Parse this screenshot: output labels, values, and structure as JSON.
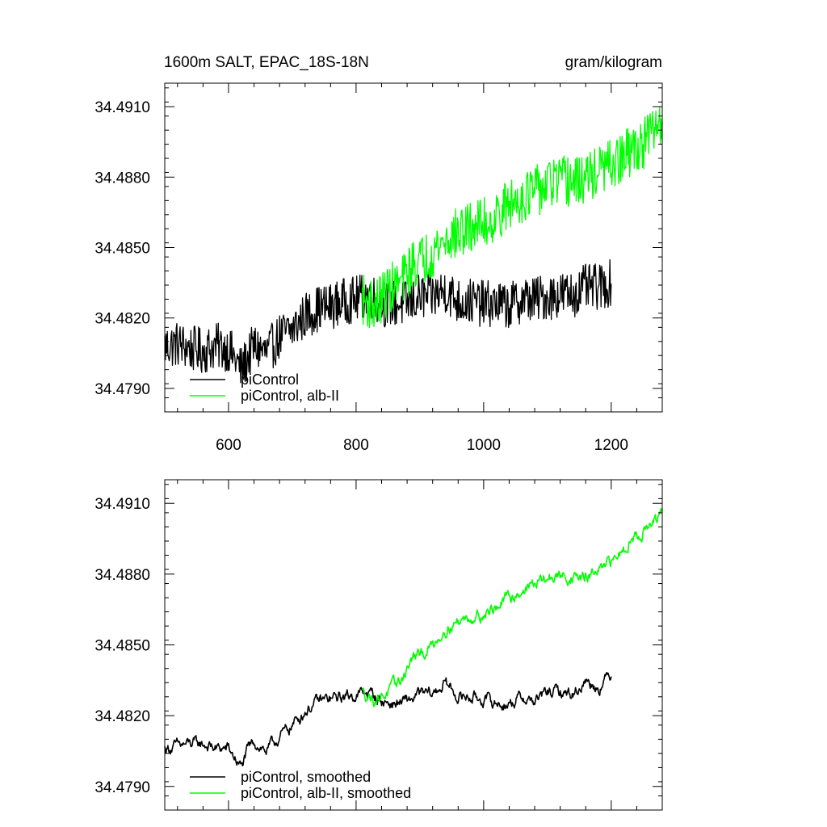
{
  "chart_data": [
    {
      "type": "line",
      "title": "1600m SALT, EPAC_18S-18N",
      "units": "gram/kilogram",
      "xlim": [
        500,
        1280
      ],
      "ylim": [
        34.478,
        34.492
      ],
      "xticks": [
        "600",
        "800",
        "1000",
        "1200"
      ],
      "yticks": [
        "34.4910",
        "34.4880",
        "34.4850",
        "34.4820",
        "34.4790"
      ],
      "legend_position": "bottom-left",
      "series": [
        {
          "name": "piControl",
          "color": "#000000",
          "x_range": [
            500,
            1200
          ],
          "points": [
            [
              500,
              34.4808
            ],
            [
              520,
              34.4809
            ],
            [
              540,
              34.4807
            ],
            [
              560,
              34.4806
            ],
            [
              580,
              34.4808
            ],
            [
              600,
              34.4807
            ],
            [
              620,
              34.4798
            ],
            [
              640,
              34.4808
            ],
            [
              660,
              34.4805
            ],
            [
              680,
              34.4812
            ],
            [
              700,
              34.4815
            ],
            [
              720,
              34.4821
            ],
            [
              740,
              34.4824
            ],
            [
              760,
              34.4825
            ],
            [
              780,
              34.4827
            ],
            [
              800,
              34.4828
            ],
            [
              820,
              34.483
            ],
            [
              840,
              34.4826
            ],
            [
              860,
              34.4826
            ],
            [
              880,
              34.4826
            ],
            [
              900,
              34.4829
            ],
            [
              920,
              34.4829
            ],
            [
              940,
              34.4832
            ],
            [
              960,
              34.4827
            ],
            [
              980,
              34.4827
            ],
            [
              1000,
              34.4826
            ],
            [
              1020,
              34.4826
            ],
            [
              1040,
              34.4825
            ],
            [
              1060,
              34.4828
            ],
            [
              1080,
              34.4828
            ],
            [
              1100,
              34.4829
            ],
            [
              1120,
              34.483
            ],
            [
              1140,
              34.483
            ],
            [
              1160,
              34.4833
            ],
            [
              1180,
              34.4833
            ],
            [
              1200,
              34.4835
            ]
          ],
          "noise": 0.001
        },
        {
          "name": "piControl, alb-II",
          "color": "#00ff00",
          "x_range": [
            810,
            1280
          ],
          "points": [
            [
              810,
              34.4828
            ],
            [
              830,
              34.4825
            ],
            [
              850,
              34.4832
            ],
            [
              870,
              34.4835
            ],
            [
              890,
              34.4843
            ],
            [
              910,
              34.4846
            ],
            [
              930,
              34.4851
            ],
            [
              950,
              34.4855
            ],
            [
              970,
              34.4857
            ],
            [
              990,
              34.486
            ],
            [
              1010,
              34.4861
            ],
            [
              1030,
              34.4866
            ],
            [
              1050,
              34.487
            ],
            [
              1070,
              34.4873
            ],
            [
              1090,
              34.4875
            ],
            [
              1110,
              34.4878
            ],
            [
              1130,
              34.4878
            ],
            [
              1150,
              34.4878
            ],
            [
              1170,
              34.4881
            ],
            [
              1190,
              34.4884
            ],
            [
              1210,
              34.4886
            ],
            [
              1230,
              34.4891
            ],
            [
              1250,
              34.4894
            ],
            [
              1270,
              34.4901
            ],
            [
              1280,
              34.4905
            ]
          ],
          "noise": 0.0011
        }
      ]
    },
    {
      "type": "line",
      "xlim": [
        500,
        1280
      ],
      "ylim": [
        34.478,
        34.492
      ],
      "yticks": [
        "34.4910",
        "34.4880",
        "34.4850",
        "34.4820",
        "34.4790"
      ],
      "legend_position": "bottom-left",
      "series": [
        {
          "name": "piControl, smoothed",
          "color": "#000000",
          "x_range": [
            500,
            1200
          ],
          "points": [
            [
              500,
              34.4806
            ],
            [
              520,
              34.4807
            ],
            [
              540,
              34.4808
            ],
            [
              560,
              34.4808
            ],
            [
              580,
              34.4806
            ],
            [
              600,
              34.4806
            ],
            [
              610,
              34.4802
            ],
            [
              620,
              34.4798
            ],
            [
              630,
              34.4805
            ],
            [
              640,
              34.4809
            ],
            [
              660,
              34.4805
            ],
            [
              680,
              34.4811
            ],
            [
              700,
              34.4816
            ],
            [
              720,
              34.4822
            ],
            [
              740,
              34.4826
            ],
            [
              760,
              34.4827
            ],
            [
              780,
              34.4828
            ],
            [
              800,
              34.4829
            ],
            [
              820,
              34.483
            ],
            [
              840,
              34.4826
            ],
            [
              860,
              34.4825
            ],
            [
              880,
              34.4826
            ],
            [
              900,
              34.4829
            ],
            [
              920,
              34.4829
            ],
            [
              940,
              34.4834
            ],
            [
              960,
              34.4828
            ],
            [
              980,
              34.4828
            ],
            [
              1000,
              34.4827
            ],
            [
              1020,
              34.4825
            ],
            [
              1040,
              34.4825
            ],
            [
              1060,
              34.4828
            ],
            [
              1080,
              34.4826
            ],
            [
              1100,
              34.483
            ],
            [
              1120,
              34.483
            ],
            [
              1140,
              34.4829
            ],
            [
              1160,
              34.4835
            ],
            [
              1180,
              34.4832
            ],
            [
              1200,
              34.4838
            ]
          ],
          "noise": 0.0003
        },
        {
          "name": "piControl, alb-II, smoothed",
          "color": "#00ff00",
          "x_range": [
            810,
            1280
          ],
          "points": [
            [
              810,
              34.483
            ],
            [
              830,
              34.4827
            ],
            [
              850,
              34.483
            ],
            [
              870,
              34.4835
            ],
            [
              880,
              34.484
            ],
            [
              890,
              34.4845
            ],
            [
              900,
              34.4845
            ],
            [
              920,
              34.485
            ],
            [
              940,
              34.4857
            ],
            [
              960,
              34.486
            ],
            [
              980,
              34.4862
            ],
            [
              1000,
              34.4863
            ],
            [
              1020,
              34.4866
            ],
            [
              1040,
              34.487
            ],
            [
              1060,
              34.4873
            ],
            [
              1080,
              34.4876
            ],
            [
              1100,
              34.4878
            ],
            [
              1120,
              34.4879
            ],
            [
              1140,
              34.4879
            ],
            [
              1160,
              34.4878
            ],
            [
              1170,
              34.488
            ],
            [
              1190,
              34.4882
            ],
            [
              1210,
              34.4888
            ],
            [
              1230,
              34.4895
            ],
            [
              1250,
              34.4898
            ],
            [
              1270,
              34.4902
            ],
            [
              1280,
              34.4906
            ]
          ],
          "noise": 0.0003
        }
      ]
    }
  ]
}
